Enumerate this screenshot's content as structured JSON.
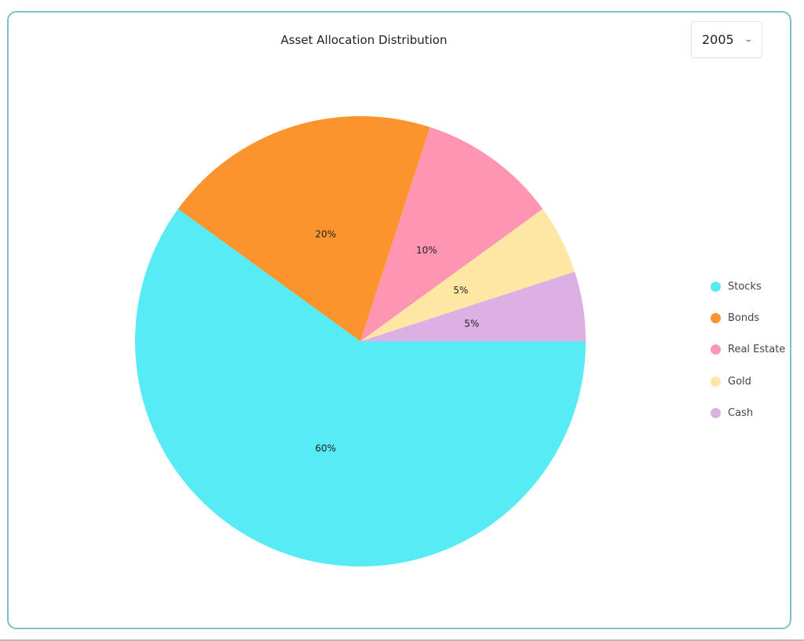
{
  "chart_data": {
    "type": "pie",
    "title": "Asset Allocation Distribution",
    "categories": [
      "Stocks",
      "Bonds",
      "Real Estate",
      "Gold",
      "Cash"
    ],
    "values": [
      60,
      20,
      10,
      5,
      5
    ],
    "labels": [
      "60%",
      "20%",
      "10%",
      "5%",
      "5%"
    ],
    "colors": [
      "#57EBF5",
      "#FC942D",
      "#FE95B2",
      "#FEE6A4",
      "#DCB0E2"
    ],
    "legend_position": "right"
  },
  "year_selector": {
    "value": "2005",
    "icon": "chevron-down-icon"
  }
}
